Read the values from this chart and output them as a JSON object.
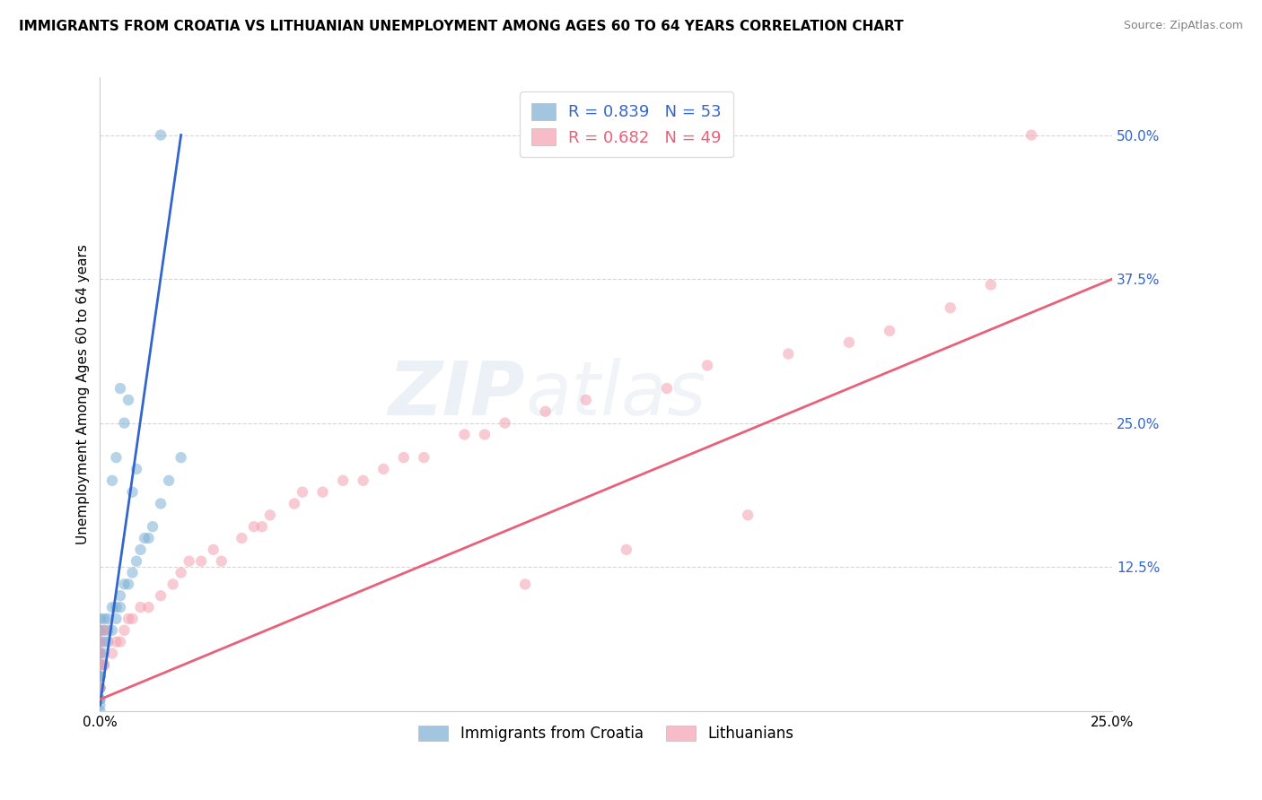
{
  "title": "IMMIGRANTS FROM CROATIA VS LITHUANIAN UNEMPLOYMENT AMONG AGES 60 TO 64 YEARS CORRELATION CHART",
  "source": "Source: ZipAtlas.com",
  "ylabel": "Unemployment Among Ages 60 to 64 years",
  "xlim": [
    0.0,
    0.25
  ],
  "ylim": [
    0.0,
    0.55
  ],
  "xtick_positions": [
    0.0,
    0.05,
    0.1,
    0.15,
    0.2,
    0.25
  ],
  "xticklabels": [
    "0.0%",
    "",
    "",
    "",
    "",
    "25.0%"
  ],
  "ytick_positions": [
    0.0,
    0.125,
    0.25,
    0.375,
    0.5
  ],
  "yticklabels": [
    "",
    "12.5%",
    "25.0%",
    "37.5%",
    "50.0%"
  ],
  "croatia_R": 0.839,
  "croatia_N": 53,
  "lithuanian_R": 0.682,
  "lithuanian_N": 49,
  "croatia_color": "#7BAFD4",
  "lithuanian_color": "#F4A0B0",
  "croatia_line_color": "#3366CC",
  "lithuanian_line_color": "#E8607A",
  "grid_color": "#CCCCCC",
  "croatia_x": [
    0.0,
    0.0,
    0.0,
    0.0,
    0.0,
    0.0,
    0.0,
    0.0,
    0.0,
    0.0,
    0.0,
    0.0,
    0.0,
    0.0,
    0.0,
    0.0,
    0.0,
    0.0,
    0.0,
    0.0,
    0.001,
    0.001,
    0.001,
    0.001,
    0.001,
    0.002,
    0.002,
    0.002,
    0.003,
    0.003,
    0.004,
    0.004,
    0.005,
    0.005,
    0.006,
    0.007,
    0.008,
    0.009,
    0.01,
    0.011,
    0.012,
    0.013,
    0.015,
    0.017,
    0.02,
    0.003,
    0.004,
    0.005,
    0.006,
    0.007,
    0.008,
    0.009,
    0.015
  ],
  "croatia_y": [
    0.0,
    0.005,
    0.01,
    0.01,
    0.02,
    0.02,
    0.03,
    0.03,
    0.04,
    0.04,
    0.05,
    0.05,
    0.06,
    0.06,
    0.07,
    0.07,
    0.08,
    0.05,
    0.03,
    0.02,
    0.04,
    0.05,
    0.06,
    0.07,
    0.08,
    0.06,
    0.07,
    0.08,
    0.07,
    0.09,
    0.08,
    0.09,
    0.09,
    0.1,
    0.11,
    0.11,
    0.12,
    0.13,
    0.14,
    0.15,
    0.15,
    0.16,
    0.18,
    0.2,
    0.22,
    0.2,
    0.22,
    0.28,
    0.25,
    0.27,
    0.19,
    0.21,
    0.5
  ],
  "croatia_line_x": [
    0.0,
    0.02
  ],
  "croatia_line_y": [
    0.005,
    0.5
  ],
  "lithuanian_x": [
    0.0,
    0.0,
    0.0,
    0.0,
    0.001,
    0.001,
    0.003,
    0.004,
    0.005,
    0.006,
    0.007,
    0.008,
    0.01,
    0.012,
    0.015,
    0.018,
    0.02,
    0.022,
    0.025,
    0.028,
    0.03,
    0.035,
    0.038,
    0.04,
    0.042,
    0.048,
    0.05,
    0.055,
    0.06,
    0.065,
    0.07,
    0.075,
    0.08,
    0.09,
    0.095,
    0.1,
    0.105,
    0.11,
    0.12,
    0.13,
    0.14,
    0.15,
    0.16,
    0.17,
    0.185,
    0.195,
    0.21,
    0.22,
    0.23
  ],
  "lithuanian_y": [
    0.02,
    0.04,
    0.05,
    0.06,
    0.04,
    0.07,
    0.05,
    0.06,
    0.06,
    0.07,
    0.08,
    0.08,
    0.09,
    0.09,
    0.1,
    0.11,
    0.12,
    0.13,
    0.13,
    0.14,
    0.13,
    0.15,
    0.16,
    0.16,
    0.17,
    0.18,
    0.19,
    0.19,
    0.2,
    0.2,
    0.21,
    0.22,
    0.22,
    0.24,
    0.24,
    0.25,
    0.11,
    0.26,
    0.27,
    0.14,
    0.28,
    0.3,
    0.17,
    0.31,
    0.32,
    0.33,
    0.35,
    0.37,
    0.5
  ],
  "lithuanian_line_x": [
    0.0,
    0.25
  ],
  "lithuanian_line_y": [
    0.01,
    0.375
  ]
}
